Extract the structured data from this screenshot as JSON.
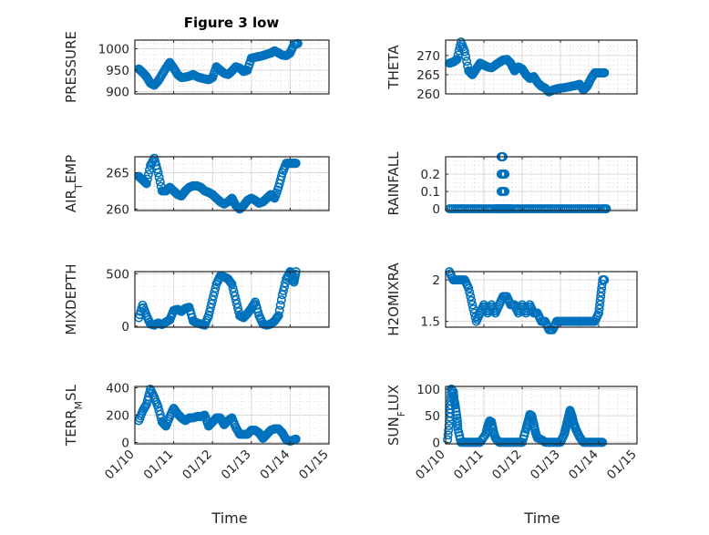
{
  "figure": {
    "title": "Figure 3 low",
    "marker_color": "#0072bd",
    "xtick_labels": [
      "01/10",
      "01/11",
      "01/12",
      "01/13",
      "01/14",
      "01/15"
    ],
    "xlabel": "Time"
  },
  "chart_data": [
    {
      "type": "scatter",
      "title": "Figure 3 low",
      "ylabel": "PRESSURE",
      "xlabel": "",
      "xlim": [
        0,
        5
      ],
      "ylim": [
        895,
        1020
      ],
      "yticks": [
        900,
        950,
        1000
      ],
      "grid": true,
      "minor_grid": true,
      "x": [
        0.1,
        0.2,
        0.3,
        0.4,
        0.5,
        0.6,
        0.7,
        0.8,
        0.9,
        1.0,
        1.1,
        1.2,
        1.3,
        1.4,
        1.5,
        1.6,
        1.7,
        1.8,
        1.9,
        2.0,
        2.1,
        2.2,
        2.3,
        2.4,
        2.5,
        2.6,
        2.7,
        2.8,
        2.9,
        3.0,
        3.1,
        3.2,
        3.3,
        3.4,
        3.5,
        3.6,
        3.7,
        3.8,
        3.9,
        4.0,
        4.1,
        4.2
      ],
      "values": [
        953,
        945,
        935,
        920,
        915,
        925,
        940,
        955,
        968,
        955,
        940,
        933,
        934,
        936,
        940,
        935,
        932,
        930,
        928,
        933,
        958,
        950,
        943,
        940,
        948,
        958,
        955,
        947,
        950,
        978,
        980,
        982,
        984,
        987,
        990,
        995,
        990,
        985,
        984,
        990,
        1010,
        1012
      ]
    },
    {
      "type": "scatter",
      "title": "",
      "ylabel": "THETA",
      "xlabel": "",
      "xlim": [
        0,
        5
      ],
      "ylim": [
        260,
        274
      ],
      "yticks": [
        260,
        265,
        270
      ],
      "grid": true,
      "minor_grid": true,
      "x": [
        0.1,
        0.2,
        0.3,
        0.4,
        0.5,
        0.6,
        0.7,
        0.8,
        0.9,
        1.0,
        1.1,
        1.2,
        1.3,
        1.4,
        1.5,
        1.6,
        1.7,
        1.8,
        1.9,
        2.0,
        2.1,
        2.2,
        2.3,
        2.4,
        2.5,
        2.6,
        2.7,
        2.8,
        2.9,
        3.0,
        3.1,
        3.2,
        3.3,
        3.4,
        3.5,
        3.6,
        3.7,
        3.8,
        3.9,
        4.0,
        4.05,
        4.1,
        4.15
      ],
      "values": [
        268,
        268.3,
        269,
        273.5,
        271,
        266,
        265,
        266.5,
        268,
        267.5,
        267,
        266.8,
        267.5,
        268.2,
        268.8,
        269,
        268,
        266,
        267,
        266.5,
        265,
        264,
        264.5,
        263,
        262,
        261.5,
        260.5,
        261,
        261.3,
        261.5,
        261.6,
        261.8,
        262,
        262.2,
        262.5,
        261,
        262,
        264,
        265.5,
        265.5,
        265.5,
        265.5,
        265.5
      ]
    },
    {
      "type": "scatter",
      "title": "",
      "ylabel": "AIR_TEMP",
      "xlabel": "",
      "xlim": [
        0,
        5
      ],
      "ylim": [
        259.8,
        267.2
      ],
      "yticks": [
        260,
        265
      ],
      "grid": true,
      "minor_grid": true,
      "x": [
        0.1,
        0.2,
        0.3,
        0.4,
        0.5,
        0.6,
        0.7,
        0.8,
        0.9,
        1.0,
        1.1,
        1.2,
        1.3,
        1.4,
        1.5,
        1.6,
        1.7,
        1.8,
        1.9,
        2.0,
        2.1,
        2.2,
        2.3,
        2.4,
        2.5,
        2.6,
        2.7,
        2.8,
        2.9,
        3.0,
        3.1,
        3.2,
        3.3,
        3.4,
        3.5,
        3.6,
        3.7,
        3.8,
        3.9,
        4.0,
        4.05,
        4.1,
        4.15
      ],
      "values": [
        264.5,
        264,
        263.5,
        266,
        267,
        265,
        262.5,
        262.5,
        263,
        262.5,
        262,
        261.8,
        262.5,
        263,
        263.2,
        263.2,
        263,
        262.5,
        262.3,
        262,
        261.5,
        261,
        260.7,
        261,
        261.5,
        260.5,
        260,
        260.5,
        261.2,
        261.5,
        261.2,
        260.8,
        261,
        261.5,
        262,
        261.5,
        263,
        265,
        266.3,
        266.3,
        266.3,
        266.3,
        266.3
      ]
    },
    {
      "type": "scatter",
      "title": "",
      "ylabel": "RAINFALL",
      "xlabel": "",
      "xlim": [
        0,
        5
      ],
      "ylim": [
        -0.01,
        0.3
      ],
      "yticks": [
        0,
        0.1,
        0.2
      ],
      "grid": true,
      "minor_grid": true,
      "x": [
        0.1,
        0.3,
        0.5,
        0.7,
        0.9,
        1.1,
        1.3,
        1.4,
        1.45,
        1.5,
        1.55,
        1.6,
        1.7,
        1.9,
        2.1,
        2.3,
        2.5,
        2.7,
        2.9,
        3.1,
        3.3,
        3.5,
        3.7,
        3.9,
        4.1,
        4.2,
        1.45,
        1.5,
        1.55,
        1.45,
        1.5,
        1.55,
        1.45,
        1.5
      ],
      "values": [
        0,
        0,
        0,
        0,
        0,
        0,
        0,
        0,
        0,
        0,
        0,
        0,
        0,
        0,
        0,
        0,
        0,
        0,
        0,
        0,
        0,
        0,
        0,
        0,
        0,
        0,
        0.1,
        0.1,
        0.1,
        0.2,
        0.2,
        0.2,
        0.3,
        0.3
      ]
    },
    {
      "type": "scatter",
      "title": "",
      "ylabel": "MIXDEPTH",
      "xlabel": "",
      "xlim": [
        0,
        5
      ],
      "ylim": [
        -10,
        520
      ],
      "yticks": [
        0,
        500
      ],
      "grid": true,
      "minor_grid": true,
      "x": [
        0.1,
        0.2,
        0.3,
        0.4,
        0.5,
        0.6,
        0.7,
        0.8,
        0.9,
        1.0,
        1.1,
        1.2,
        1.3,
        1.4,
        1.5,
        1.6,
        1.7,
        1.8,
        1.9,
        2.0,
        2.1,
        2.2,
        2.3,
        2.4,
        2.5,
        2.6,
        2.7,
        2.8,
        2.9,
        3.0,
        3.1,
        3.2,
        3.3,
        3.4,
        3.5,
        3.6,
        3.7,
        3.8,
        3.9,
        4.0,
        4.05,
        4.1,
        4.15
      ],
      "values": [
        80,
        200,
        100,
        20,
        10,
        30,
        15,
        40,
        60,
        150,
        160,
        140,
        170,
        180,
        50,
        30,
        20,
        10,
        100,
        250,
        400,
        480,
        470,
        450,
        400,
        250,
        100,
        80,
        120,
        170,
        230,
        100,
        20,
        10,
        20,
        50,
        100,
        300,
        450,
        520,
        480,
        420,
        520
      ]
    },
    {
      "type": "scatter",
      "title": "",
      "ylabel": "H2OMIXRA",
      "xlabel": "",
      "xlim": [
        0,
        5
      ],
      "ylim": [
        1.43,
        2.1
      ],
      "yticks": [
        1.5,
        2
      ],
      "grid": true,
      "minor_grid": true,
      "x": [
        0.1,
        0.2,
        0.3,
        0.4,
        0.5,
        0.6,
        0.7,
        0.8,
        0.9,
        1.0,
        1.1,
        1.2,
        1.3,
        1.4,
        1.5,
        1.6,
        1.7,
        1.8,
        1.9,
        2.0,
        2.1,
        2.2,
        2.3,
        2.4,
        2.5,
        2.6,
        2.7,
        2.8,
        2.9,
        3.0,
        3.1,
        3.2,
        3.3,
        3.4,
        3.5,
        3.6,
        3.7,
        3.8,
        3.9,
        4.0,
        4.05,
        4.1,
        4.15
      ],
      "values": [
        2.1,
        2.0,
        2.0,
        2.0,
        2.0,
        1.9,
        1.7,
        1.5,
        1.6,
        1.7,
        1.6,
        1.7,
        1.6,
        1.7,
        1.8,
        1.8,
        1.7,
        1.7,
        1.6,
        1.7,
        1.6,
        1.7,
        1.6,
        1.6,
        1.5,
        1.5,
        1.4,
        1.4,
        1.5,
        1.5,
        1.5,
        1.5,
        1.5,
        1.5,
        1.5,
        1.5,
        1.5,
        1.5,
        1.5,
        1.6,
        1.8,
        2.0,
        2.0
      ]
    },
    {
      "type": "scatter",
      "title": "",
      "ylabel": "TERR_MSL",
      "xlabel": "Time",
      "xlim": [
        0,
        5
      ],
      "ylim": [
        -10,
        410
      ],
      "yticks": [
        0,
        200,
        400
      ],
      "xtick_labels": [
        "01/10",
        "01/11",
        "01/12",
        "01/13",
        "01/14",
        "01/15"
      ],
      "grid": true,
      "minor_grid": true,
      "x": [
        0.1,
        0.2,
        0.3,
        0.4,
        0.5,
        0.6,
        0.7,
        0.8,
        0.9,
        1.0,
        1.1,
        1.2,
        1.3,
        1.4,
        1.5,
        1.6,
        1.7,
        1.8,
        1.9,
        2.0,
        2.1,
        2.2,
        2.3,
        2.4,
        2.5,
        2.6,
        2.7,
        2.8,
        2.9,
        3.0,
        3.1,
        3.2,
        3.3,
        3.4,
        3.5,
        3.6,
        3.7,
        3.8,
        3.9,
        4.0,
        4.05,
        4.1,
        4.15
      ],
      "values": [
        160,
        230,
        280,
        390,
        330,
        260,
        150,
        120,
        190,
        250,
        210,
        180,
        160,
        180,
        180,
        190,
        190,
        200,
        120,
        150,
        180,
        180,
        130,
        160,
        180,
        110,
        60,
        60,
        60,
        90,
        90,
        70,
        30,
        60,
        90,
        100,
        100,
        70,
        20,
        10,
        15,
        20,
        25
      ]
    },
    {
      "type": "scatter",
      "title": "",
      "ylabel": "SUN_FLUX",
      "xlabel": "Time",
      "xlim": [
        0,
        5
      ],
      "ylim": [
        -3,
        105
      ],
      "yticks": [
        0,
        50,
        100
      ],
      "xtick_labels": [
        "01/10",
        "01/11",
        "01/12",
        "01/13",
        "01/14",
        "01/15"
      ],
      "grid": true,
      "minor_grid": true,
      "x": [
        0.05,
        0.1,
        0.13,
        0.15,
        0.2,
        0.22,
        0.25,
        0.3,
        0.32,
        0.4,
        0.5,
        0.6,
        0.7,
        0.8,
        0.9,
        1.05,
        1.1,
        1.15,
        1.2,
        1.25,
        1.3,
        1.4,
        1.5,
        1.6,
        1.7,
        1.8,
        1.9,
        2.0,
        2.1,
        2.15,
        2.2,
        2.25,
        2.3,
        2.35,
        2.4,
        2.5,
        2.6,
        2.7,
        2.8,
        2.9,
        3.0,
        3.1,
        3.15,
        3.2,
        3.25,
        3.3,
        3.35,
        3.4,
        3.5,
        3.6,
        3.7,
        3.8,
        3.9,
        4.0,
        4.1
      ],
      "values": [
        5,
        40,
        70,
        100,
        95,
        80,
        70,
        45,
        25,
        0,
        0,
        0,
        0,
        0,
        0,
        15,
        30,
        40,
        38,
        20,
        8,
        0,
        0,
        0,
        0,
        0,
        0,
        0,
        25,
        38,
        52,
        50,
        35,
        18,
        8,
        5,
        0,
        0,
        0,
        0,
        0,
        15,
        30,
        45,
        60,
        50,
        35,
        25,
        10,
        0,
        0,
        0,
        0,
        0,
        0
      ]
    }
  ]
}
